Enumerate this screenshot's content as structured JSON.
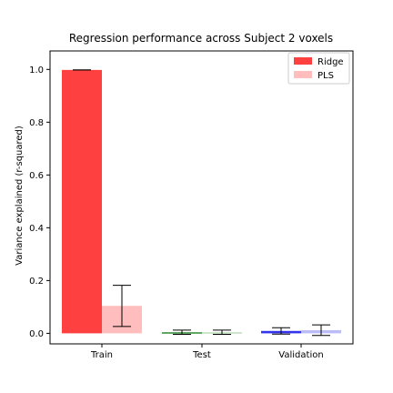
{
  "chart_data": {
    "type": "bar",
    "title": "Regression performance across Subject 2 voxels",
    "xlabel": "",
    "ylabel": "Variance explained (r-squared)",
    "ylim": [
      -0.04,
      1.07
    ],
    "yticks": [
      "0.0",
      "0.2",
      "0.4",
      "0.6",
      "0.8",
      "1.0"
    ],
    "ytick_values": [
      0.0,
      0.2,
      0.4,
      0.6,
      0.8,
      1.0
    ],
    "categories": [
      "Train",
      "Test",
      "Validation"
    ],
    "grid": false,
    "legend_position": "top-right",
    "series": [
      {
        "name": "Ridge",
        "values": [
          0.998,
          0.004,
          0.009
        ],
        "errors": [
          0.0,
          0.008,
          0.012
        ],
        "colors": [
          "#ff4040",
          "#2e8b2e",
          "#3333ee"
        ]
      },
      {
        "name": "PLS",
        "values": [
          0.104,
          0.004,
          0.012
        ],
        "errors": [
          0.078,
          0.008,
          0.02
        ],
        "colors": [
          "#ffbdbd",
          "#b9ddb9",
          "#bcbcf6"
        ]
      }
    ],
    "legend_colors": [
      "#ff4040",
      "#ffbdbd"
    ]
  }
}
